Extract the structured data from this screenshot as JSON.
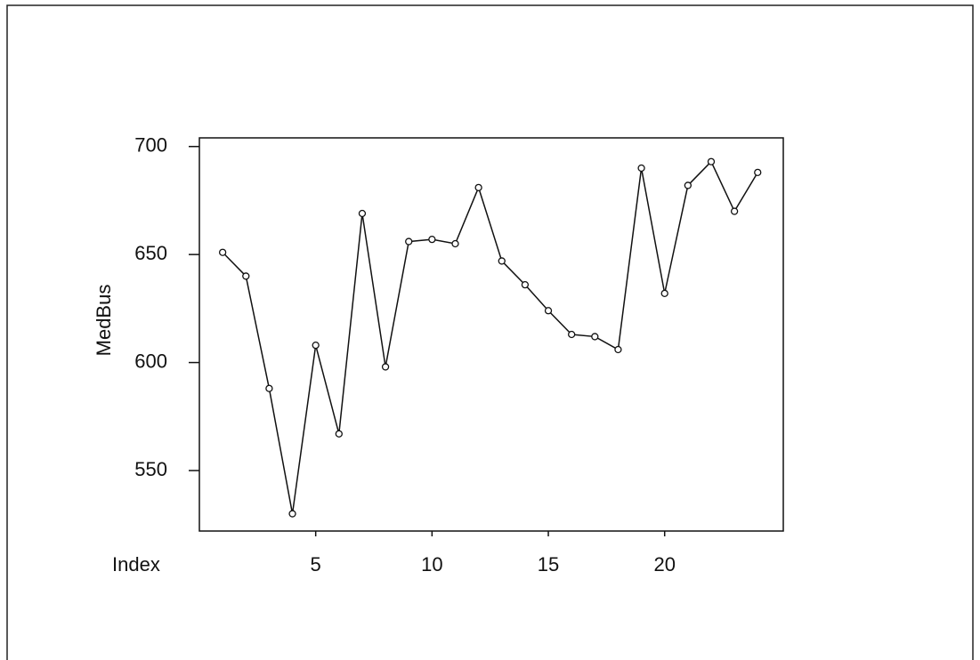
{
  "chart_data": {
    "type": "line",
    "x": [
      1,
      2,
      3,
      4,
      5,
      6,
      7,
      8,
      9,
      10,
      11,
      12,
      13,
      14,
      15,
      16,
      17,
      18,
      19,
      20,
      21,
      22,
      23,
      24
    ],
    "values": [
      651,
      640,
      588,
      530,
      608,
      567,
      669,
      598,
      656,
      657,
      655,
      681,
      647,
      636,
      624,
      613,
      612,
      606,
      690,
      632,
      682,
      693,
      670,
      688
    ],
    "color": "#111111",
    "xlabel": "Index",
    "ylabel": "MedBus",
    "xlim": [
      0,
      25.1
    ],
    "ylim": [
      522,
      704
    ],
    "xticks": [
      5,
      10,
      15,
      20
    ],
    "yticks": [
      550,
      600,
      650,
      700
    ]
  }
}
